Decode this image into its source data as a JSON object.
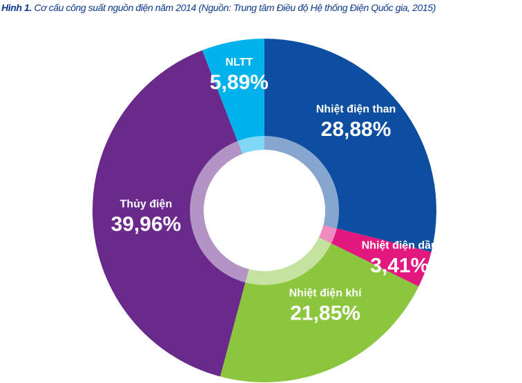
{
  "caption": {
    "figure_label": "Hình 1.",
    "title": "Cơ cấu công suất nguồn điện năm 2014",
    "source": "(Nguồn: Trung tâm Điều độ Hệ thống Điện Quốc gia, 2015)"
  },
  "chart_data": {
    "type": "pie",
    "title": "Cơ cấu công suất nguồn điện năm 2014",
    "series": [
      {
        "name": "Nhiệt điện than",
        "value": 28.88,
        "label": "28,88%",
        "color": "#0d4ea1",
        "inner_color": "#86a6d0"
      },
      {
        "name": "Nhiệt điện dầu",
        "value": 3.41,
        "label": "3,41%",
        "color": "#e2187e",
        "inner_color": "#f08bbf"
      },
      {
        "name": "Nhiệt điện khí",
        "value": 21.85,
        "label": "21,85%",
        "color": "#8cc63f",
        "inner_color": "#c5e29f"
      },
      {
        "name": "Thủy điện",
        "value": 39.96,
        "label": "39,96%",
        "color": "#6a2a8c",
        "inner_color": "#b494c5"
      },
      {
        "name": "NLTT",
        "value": 5.89,
        "label": "5,89%",
        "color": "#00b2ec",
        "inner_color": "#7fd8f5"
      }
    ]
  }
}
